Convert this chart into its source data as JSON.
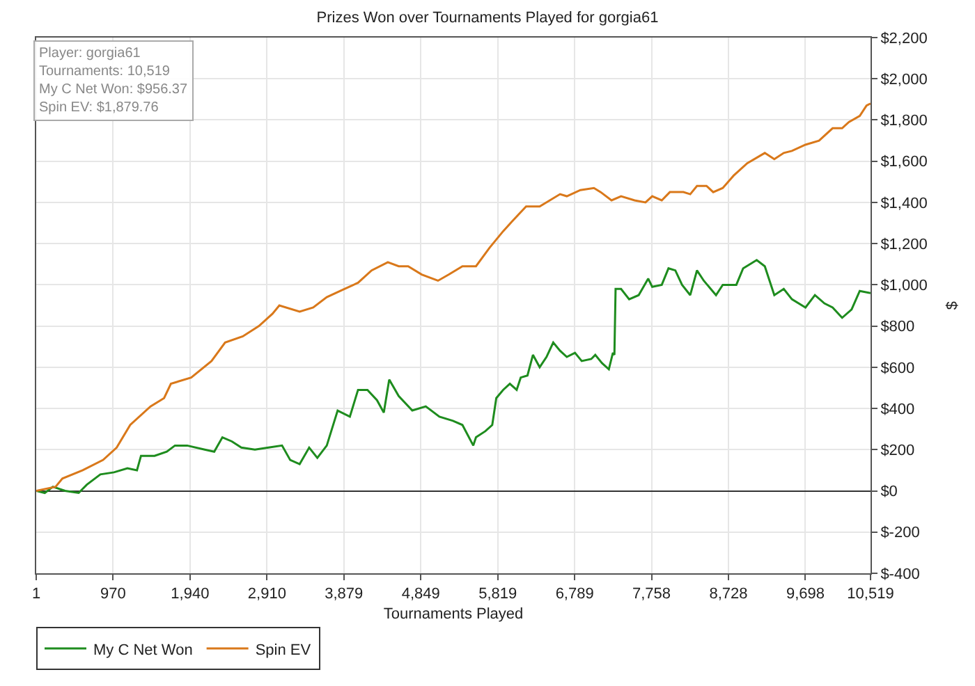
{
  "chart_data": {
    "type": "line",
    "title": "Prizes Won over Tournaments Played for gorgia61",
    "xlabel": "Tournaments Played",
    "ylabel": "$",
    "annotations": [
      "Player: gorgia61",
      "Tournaments: 10,519",
      "My C Net Won: $956.37",
      "Spin EV: $1,879.76"
    ],
    "xlim": [
      1,
      10519
    ],
    "xticks": [
      1,
      970,
      {
        "value": 1940,
        "label": "1,940"
      },
      {
        "value": 2910,
        "label": "2,910"
      },
      {
        "value": 3879,
        "label": "3,879"
      },
      {
        "value": 4849,
        "label": "4,849"
      },
      {
        "value": 5819,
        "label": "5,819"
      },
      {
        "value": 6789,
        "label": "6,789"
      },
      {
        "value": 7758,
        "label": "7,758"
      },
      {
        "value": 8728,
        "label": "8,728"
      },
      {
        "value": 9698,
        "label": "9,698"
      },
      {
        "value": 10519,
        "label": "10,519"
      }
    ],
    "ylim": [
      -400,
      2200
    ],
    "yticks": [
      {
        "value": -400,
        "label": "$-400"
      },
      {
        "value": -200,
        "label": "$-200"
      },
      {
        "value": 0,
        "label": "$0"
      },
      {
        "value": 200,
        "label": "$200"
      },
      {
        "value": 400,
        "label": "$400"
      },
      {
        "value": 600,
        "label": "$600"
      },
      {
        "value": 800,
        "label": "$800"
      },
      {
        "value": 1000,
        "label": "$1,000"
      },
      {
        "value": 1200,
        "label": "$1,200"
      },
      {
        "value": 1400,
        "label": "$1,400"
      },
      {
        "value": 1600,
        "label": "$1,600"
      },
      {
        "value": 1800,
        "label": "$1,800"
      },
      {
        "value": 2000,
        "label": "$2,000"
      },
      {
        "value": 2200,
        "label": "$2,200"
      }
    ],
    "grid": true,
    "legend": "bottom left",
    "marker": "none",
    "line_style": "solid",
    "series": [
      {
        "name": "My C Net Won",
        "color": "#1e8c1e",
        "x": [
          1,
          109,
          211,
          365,
          536,
          639,
          810,
          981,
          1151,
          1271,
          1322,
          1493,
          1647,
          1750,
          1904,
          2126,
          2245,
          2348,
          2468,
          2587,
          2758,
          2929,
          3100,
          3203,
          3322,
          3442,
          3545,
          3664,
          3801,
          3955,
          4058,
          4177,
          4297,
          4383,
          4451,
          4571,
          4742,
          4912,
          5084,
          5255,
          5374,
          5511,
          5545,
          5664,
          5750,
          5801,
          5887,
          5972,
          6058,
          6109,
          6194,
          6263,
          6348,
          6434,
          6519,
          6605,
          6690,
          6793,
          6878,
          6998,
          7049,
          7134,
          7220,
          7271,
          7290,
          7305,
          7374,
          7476,
          7596,
          7716,
          7767,
          7887,
          7972,
          8058,
          8143,
          8246,
          8331,
          8417,
          8571,
          8656,
          8827,
          8913,
          9084,
          9186,
          9306,
          9425,
          9528,
          9699,
          9818,
          9938,
          10041,
          10161,
          10280,
          10383,
          10519
        ],
        "values": [
          0,
          -10,
          20,
          0,
          -10,
          30,
          80,
          90,
          110,
          100,
          170,
          170,
          190,
          220,
          220,
          200,
          190,
          260,
          240,
          210,
          200,
          210,
          220,
          150,
          130,
          210,
          160,
          220,
          390,
          360,
          490,
          490,
          440,
          380,
          540,
          460,
          390,
          410,
          360,
          340,
          320,
          220,
          260,
          290,
          320,
          450,
          490,
          520,
          490,
          550,
          560,
          660,
          600,
          650,
          720,
          680,
          650,
          670,
          630,
          640,
          660,
          620,
          590,
          670,
          660,
          980,
          980,
          930,
          950,
          1030,
          990,
          1000,
          1080,
          1070,
          1000,
          950,
          1070,
          1020,
          950,
          1000,
          1000,
          1080,
          1120,
          1090,
          950,
          980,
          930,
          890,
          950,
          910,
          890,
          840,
          880,
          970,
          960
        ]
      },
      {
        "name": "Spin EV",
        "color": "#d9781a",
        "x": [
          1,
          245,
          331,
          587,
          844,
          1015,
          1186,
          1442,
          1613,
          1699,
          1955,
          2211,
          2382,
          2605,
          2809,
          2980,
          3066,
          3322,
          3493,
          3664,
          3886,
          4058,
          4229,
          4434,
          4571,
          4690,
          4861,
          5066,
          5203,
          5374,
          5545,
          5716,
          5887,
          6006,
          6177,
          6348,
          6605,
          6690,
          6861,
          7032,
          7117,
          7254,
          7374,
          7545,
          7682,
          7767,
          7887,
          7989,
          8160,
          8246,
          8331,
          8451,
          8536,
          8656,
          8793,
          8964,
          9186,
          9306,
          9425,
          9528,
          9699,
          9870,
          10041,
          10161,
          10246,
          10383,
          10469,
          10519
        ],
        "values": [
          0,
          20,
          60,
          100,
          150,
          210,
          320,
          410,
          450,
          520,
          550,
          630,
          720,
          750,
          800,
          860,
          900,
          870,
          890,
          940,
          980,
          1010,
          1070,
          1110,
          1090,
          1090,
          1050,
          1020,
          1050,
          1090,
          1090,
          1180,
          1260,
          1310,
          1380,
          1380,
          1440,
          1430,
          1460,
          1470,
          1450,
          1410,
          1430,
          1410,
          1400,
          1430,
          1410,
          1450,
          1450,
          1440,
          1480,
          1480,
          1450,
          1470,
          1530,
          1590,
          1640,
          1610,
          1640,
          1650,
          1680,
          1700,
          1760,
          1760,
          1790,
          1820,
          1870,
          1880
        ]
      }
    ]
  }
}
